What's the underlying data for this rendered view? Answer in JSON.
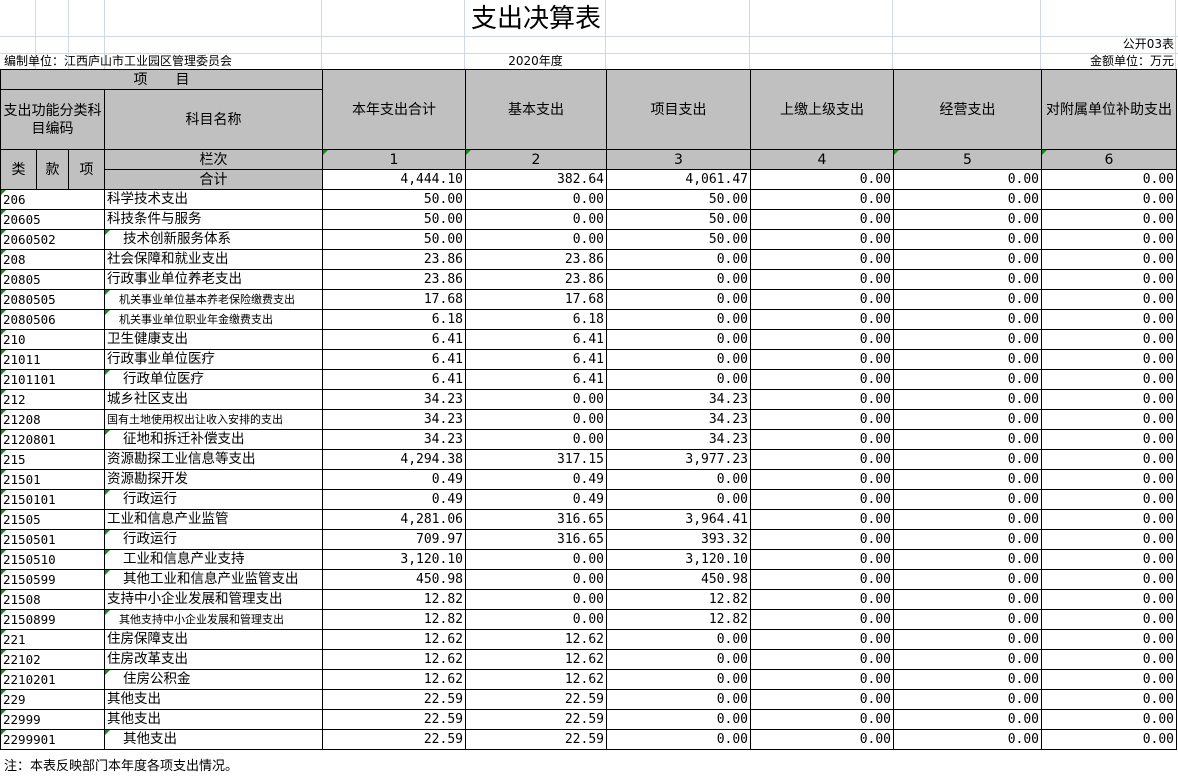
{
  "title": "支出决算表",
  "form_no": "公开03表",
  "unit_label": "编制单位：江西庐山市工业园区管理委员会",
  "year": "2020年度",
  "amount_unit": "金额单位：万元",
  "header": {
    "item": "项　　目",
    "code_col": "支出功能分类科目编码",
    "name_col": "科目名称",
    "cols": [
      "本年支出合计",
      "基本支出",
      "项目支出",
      "上缴上级支出",
      "经营支出",
      "对附属单位补助支出"
    ],
    "lei": "类",
    "kuan": "款",
    "xiang": "项",
    "lanci": "栏次",
    "col_nums": [
      "1",
      "2",
      "3",
      "4",
      "5",
      "6"
    ],
    "total_label": "合计",
    "total_values": [
      "4,444.10",
      "382.64",
      "4,061.47",
      "0.00",
      "0.00",
      "0.00"
    ]
  },
  "rows": [
    {
      "code": "206",
      "name": "科学技术支出",
      "v": [
        "50.00",
        "0.00",
        "50.00",
        "0.00",
        "0.00",
        "0.00"
      ]
    },
    {
      "code": "20605",
      "name": "科技条件与服务",
      "v": [
        "50.00",
        "0.00",
        "50.00",
        "0.00",
        "0.00",
        "0.00"
      ]
    },
    {
      "code": "2060502",
      "name": "技术创新服务体系",
      "v": [
        "50.00",
        "0.00",
        "50.00",
        "0.00",
        "0.00",
        "0.00"
      ]
    },
    {
      "code": "208",
      "name": "社会保障和就业支出",
      "v": [
        "23.86",
        "23.86",
        "0.00",
        "0.00",
        "0.00",
        "0.00"
      ]
    },
    {
      "code": "20805",
      "name": "行政事业单位养老支出",
      "v": [
        "23.86",
        "23.86",
        "0.00",
        "0.00",
        "0.00",
        "0.00"
      ]
    },
    {
      "code": "2080505",
      "name": "机关事业单位基本养老保险缴费支出",
      "v": [
        "17.68",
        "17.68",
        "0.00",
        "0.00",
        "0.00",
        "0.00"
      ]
    },
    {
      "code": "2080506",
      "name": "机关事业单位职业年金缴费支出",
      "v": [
        "6.18",
        "6.18",
        "0.00",
        "0.00",
        "0.00",
        "0.00"
      ]
    },
    {
      "code": "210",
      "name": "卫生健康支出",
      "v": [
        "6.41",
        "6.41",
        "0.00",
        "0.00",
        "0.00",
        "0.00"
      ]
    },
    {
      "code": "21011",
      "name": "行政事业单位医疗",
      "v": [
        "6.41",
        "6.41",
        "0.00",
        "0.00",
        "0.00",
        "0.00"
      ]
    },
    {
      "code": "2101101",
      "name": "行政单位医疗",
      "v": [
        "6.41",
        "6.41",
        "0.00",
        "0.00",
        "0.00",
        "0.00"
      ]
    },
    {
      "code": "212",
      "name": "城乡社区支出",
      "v": [
        "34.23",
        "0.00",
        "34.23",
        "0.00",
        "0.00",
        "0.00"
      ]
    },
    {
      "code": "21208",
      "name": "国有土地使用权出让收入安排的支出",
      "v": [
        "34.23",
        "0.00",
        "34.23",
        "0.00",
        "0.00",
        "0.00"
      ]
    },
    {
      "code": "2120801",
      "name": "征地和拆迁补偿支出",
      "v": [
        "34.23",
        "0.00",
        "34.23",
        "0.00",
        "0.00",
        "0.00"
      ]
    },
    {
      "code": "215",
      "name": "资源勘探工业信息等支出",
      "v": [
        "4,294.38",
        "317.15",
        "3,977.23",
        "0.00",
        "0.00",
        "0.00"
      ]
    },
    {
      "code": "21501",
      "name": "资源勘探开发",
      "v": [
        "0.49",
        "0.49",
        "0.00",
        "0.00",
        "0.00",
        "0.00"
      ]
    },
    {
      "code": "2150101",
      "name": "行政运行",
      "v": [
        "0.49",
        "0.49",
        "0.00",
        "0.00",
        "0.00",
        "0.00"
      ]
    },
    {
      "code": "21505",
      "name": "工业和信息产业监管",
      "v": [
        "4,281.06",
        "316.65",
        "3,964.41",
        "0.00",
        "0.00",
        "0.00"
      ]
    },
    {
      "code": "2150501",
      "name": "行政运行",
      "v": [
        "709.97",
        "316.65",
        "393.32",
        "0.00",
        "0.00",
        "0.00"
      ]
    },
    {
      "code": "2150510",
      "name": "工业和信息产业支持",
      "v": [
        "3,120.10",
        "0.00",
        "3,120.10",
        "0.00",
        "0.00",
        "0.00"
      ]
    },
    {
      "code": "2150599",
      "name": "其他工业和信息产业监管支出",
      "v": [
        "450.98",
        "0.00",
        "450.98",
        "0.00",
        "0.00",
        "0.00"
      ]
    },
    {
      "code": "21508",
      "name": "支持中小企业发展和管理支出",
      "v": [
        "12.82",
        "0.00",
        "12.82",
        "0.00",
        "0.00",
        "0.00"
      ]
    },
    {
      "code": "2150899",
      "name": "其他支持中小企业发展和管理支出",
      "v": [
        "12.82",
        "0.00",
        "12.82",
        "0.00",
        "0.00",
        "0.00"
      ]
    },
    {
      "code": "221",
      "name": "住房保障支出",
      "v": [
        "12.62",
        "12.62",
        "0.00",
        "0.00",
        "0.00",
        "0.00"
      ]
    },
    {
      "code": "22102",
      "name": "住房改革支出",
      "v": [
        "12.62",
        "12.62",
        "0.00",
        "0.00",
        "0.00",
        "0.00"
      ]
    },
    {
      "code": "2210201",
      "name": "住房公积金",
      "v": [
        "12.62",
        "12.62",
        "0.00",
        "0.00",
        "0.00",
        "0.00"
      ]
    },
    {
      "code": "229",
      "name": "其他支出",
      "v": [
        "22.59",
        "22.59",
        "0.00",
        "0.00",
        "0.00",
        "0.00"
      ]
    },
    {
      "code": "22999",
      "name": "其他支出",
      "v": [
        "22.59",
        "22.59",
        "0.00",
        "0.00",
        "0.00",
        "0.00"
      ]
    },
    {
      "code": "2299901",
      "name": "其他支出",
      "v": [
        "22.59",
        "22.59",
        "0.00",
        "0.00",
        "0.00",
        "0.00"
      ]
    }
  ],
  "footnote": "注：本表反映部门本年度各项支出情况。"
}
